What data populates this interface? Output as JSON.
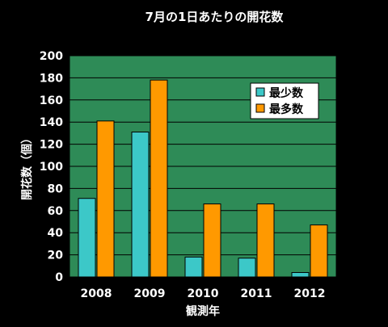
{
  "chart_data": {
    "type": "bar",
    "title": "7月の1日あたりの開花数",
    "xlabel": "観測年",
    "ylabel": "開花数（個）",
    "categories": [
      "2008",
      "2009",
      "2010",
      "2011",
      "2012"
    ],
    "series": [
      {
        "name": "最少数",
        "color": "#3cc8c8",
        "values": [
          71,
          131,
          18,
          17,
          4
        ]
      },
      {
        "name": "最多数",
        "color": "#ff9900",
        "values": [
          141,
          178,
          66,
          66,
          47
        ]
      }
    ],
    "ylim": [
      0,
      200
    ],
    "yticks": [
      0,
      20,
      40,
      60,
      80,
      100,
      120,
      140,
      160,
      180,
      200
    ],
    "grid": true,
    "legend_position": "top-right",
    "plot_background": "#2e8b57",
    "page_background": "#000000"
  }
}
